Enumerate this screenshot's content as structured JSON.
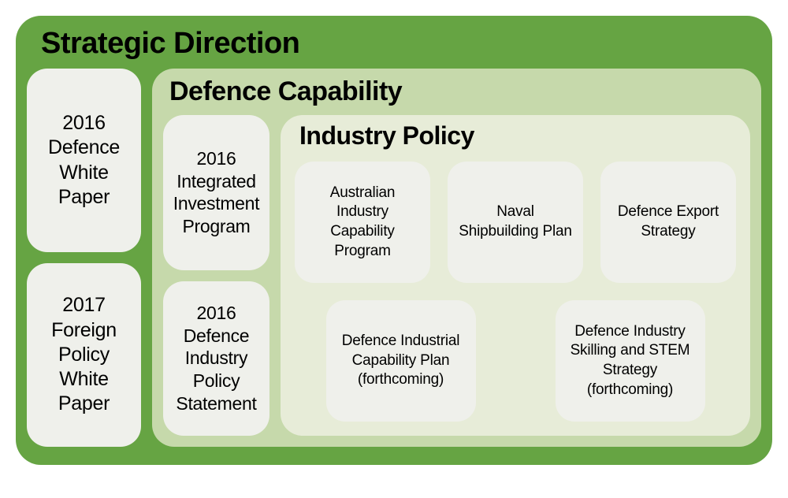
{
  "diagram": {
    "type": "nested-box",
    "colors": {
      "outer_bg": "#66a443",
      "mid_bg": "#c6d9ab",
      "inner_bg": "#e7ecd8",
      "pill_bg": "#eff0eb",
      "text": "#000000"
    },
    "fontsizes": {
      "outer_title": 38,
      "mid_title": 34,
      "inner_title": 32,
      "left_pill": 25,
      "mid_pill": 23,
      "node": 19
    },
    "outer": {
      "title": "Strategic Direction",
      "left_items": [
        "2016 Defence White Paper",
        "2017 Foreign Policy White Paper"
      ]
    },
    "mid": {
      "title": "Defence Capability",
      "left_items": [
        "2016 Integrated Investment Program",
        "2016 Defence Industry Policy Statement"
      ]
    },
    "inner": {
      "title": "Industry Policy",
      "row1": [
        "Australian Industry Capability Program",
        "Naval Shipbuilding Plan",
        "Defence Export Strategy"
      ],
      "row2": [
        "Defence Industrial Capability Plan (forthcoming)",
        "Defence Industry Skilling and STEM Strategy (forthcoming)"
      ]
    }
  }
}
